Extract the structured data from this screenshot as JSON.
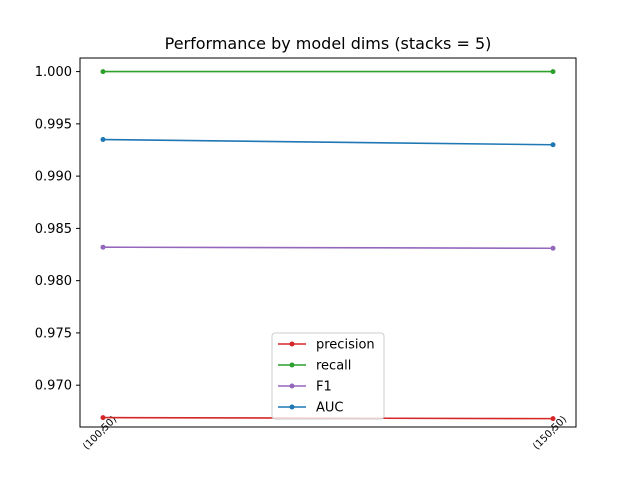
{
  "chart_data": {
    "type": "line",
    "title": "Performance by model dims (stacks = 5)",
    "xlabel": "",
    "ylabel": "",
    "categories": [
      "(100,50)",
      "(150,50)"
    ],
    "ylim": [
      0.966,
      1.0013
    ],
    "yticks": [
      "0.970",
      "0.975",
      "0.980",
      "0.985",
      "0.990",
      "0.995",
      "1.000"
    ],
    "ytick_values": [
      0.97,
      0.975,
      0.98,
      0.985,
      0.99,
      0.995,
      1.0
    ],
    "grid": false,
    "legend": "lower center",
    "series": [
      {
        "name": "precision",
        "color": "#d62728",
        "values": [
          0.9669,
          0.9668
        ]
      },
      {
        "name": "recall",
        "color": "#2ca02c",
        "values": [
          1.0,
          1.0
        ]
      },
      {
        "name": "F1",
        "color": "#9467bd",
        "values": [
          0.9832,
          0.9831
        ]
      },
      {
        "name": "AUC",
        "color": "#1f77b4",
        "values": [
          0.9935,
          0.993
        ]
      }
    ]
  }
}
